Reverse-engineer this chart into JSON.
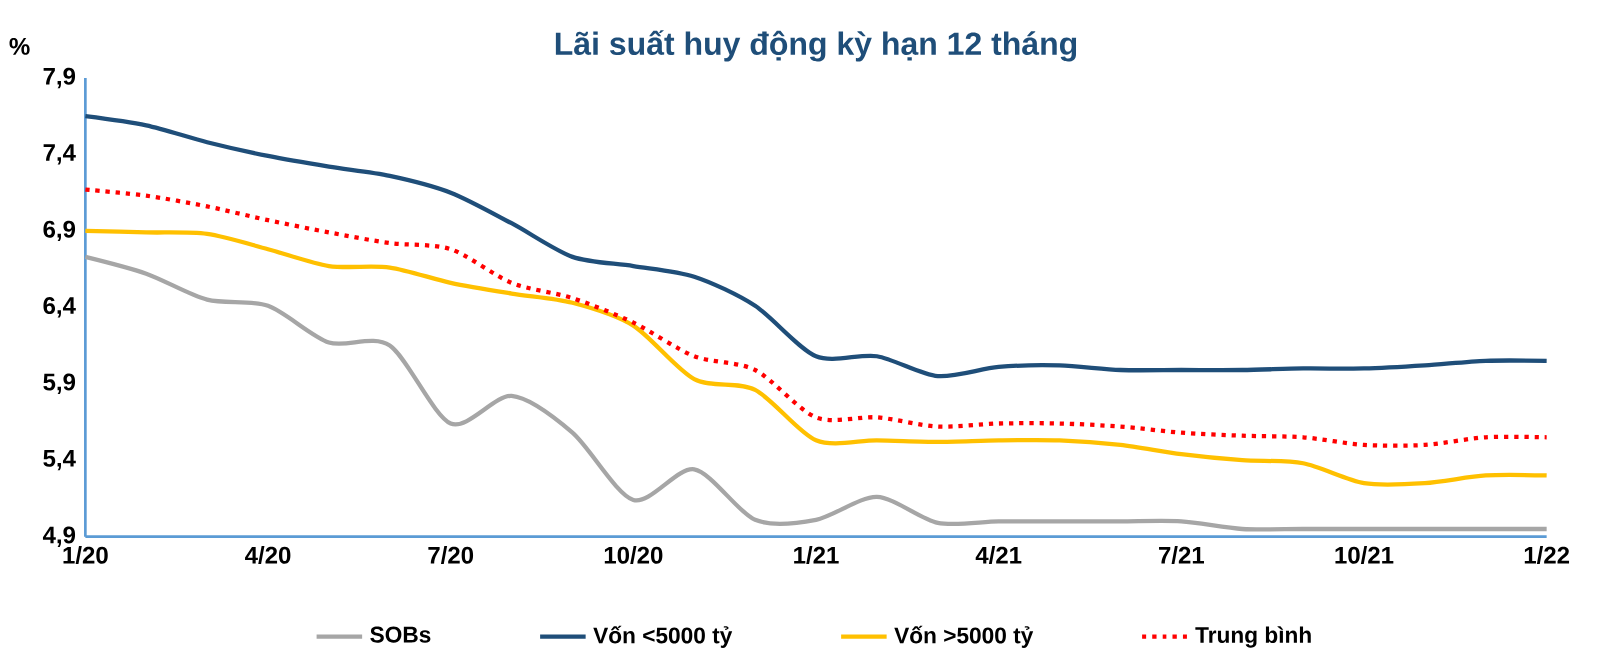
{
  "chart_data": {
    "type": "line",
    "title": "Lãi suất huy động kỳ hạn 12 tháng",
    "ylabel": "%",
    "categories": [
      "1/20",
      null,
      null,
      "4/20",
      null,
      null,
      "7/20",
      null,
      null,
      "10/20",
      null,
      null,
      "1/21",
      null,
      null,
      "4/21",
      null,
      null,
      "7/21",
      null,
      null,
      "10/21",
      null,
      null,
      "1/22"
    ],
    "series": [
      {
        "name": "SOBs",
        "color": "#a6a6a6",
        "line_style": "solid",
        "values": [
          6.73,
          6.62,
          6.45,
          6.41,
          6.17,
          6.15,
          5.64,
          5.82,
          5.58,
          5.14,
          5.34,
          5.01,
          5.01,
          5.16,
          4.99,
          5.0,
          5.0,
          5.0,
          5.0,
          4.95,
          4.95,
          4.95,
          4.95,
          4.95,
          4.95
        ]
      },
      {
        "name": "Vốn <5000 tỷ",
        "color": "#1f4e79",
        "line_style": "solid",
        "values": [
          7.65,
          7.59,
          7.48,
          7.39,
          7.32,
          7.26,
          7.15,
          6.95,
          6.73,
          6.67,
          6.6,
          6.41,
          6.08,
          6.08,
          5.95,
          6.01,
          6.02,
          5.99,
          5.99,
          5.99,
          6.0,
          6.0,
          6.02,
          6.05,
          6.05
        ]
      },
      {
        "name": "Vốn >5000 tỷ",
        "color": "#ffc000",
        "line_style": "solid",
        "values": [
          6.9,
          6.89,
          6.88,
          6.78,
          6.67,
          6.66,
          6.56,
          6.49,
          6.43,
          6.28,
          5.93,
          5.86,
          5.53,
          5.53,
          5.52,
          5.53,
          5.53,
          5.5,
          5.44,
          5.4,
          5.38,
          5.25,
          5.25,
          5.3,
          5.3
        ]
      },
      {
        "name": "Trung bình",
        "color": "#ff0000",
        "line_style": "dotted",
        "values": [
          7.17,
          7.13,
          7.06,
          6.97,
          6.89,
          6.82,
          6.78,
          6.56,
          6.46,
          6.3,
          6.08,
          5.99,
          5.68,
          5.68,
          5.62,
          5.64,
          5.64,
          5.62,
          5.58,
          5.56,
          5.55,
          5.5,
          5.5,
          5.55,
          5.55
        ]
      }
    ],
    "ylim": [
      4.9,
      7.9
    ],
    "yticks": [
      {
        "value": 4.9,
        "label": "4,9"
      },
      {
        "value": 5.4,
        "label": "5,4"
      },
      {
        "value": 5.9,
        "label": "5,9"
      },
      {
        "value": 6.4,
        "label": "6,4"
      },
      {
        "value": 6.9,
        "label": "6,9"
      },
      {
        "value": 7.4,
        "label": "7,4"
      },
      {
        "value": 7.9,
        "label": "7,9"
      }
    ],
    "legend": "bottom"
  }
}
